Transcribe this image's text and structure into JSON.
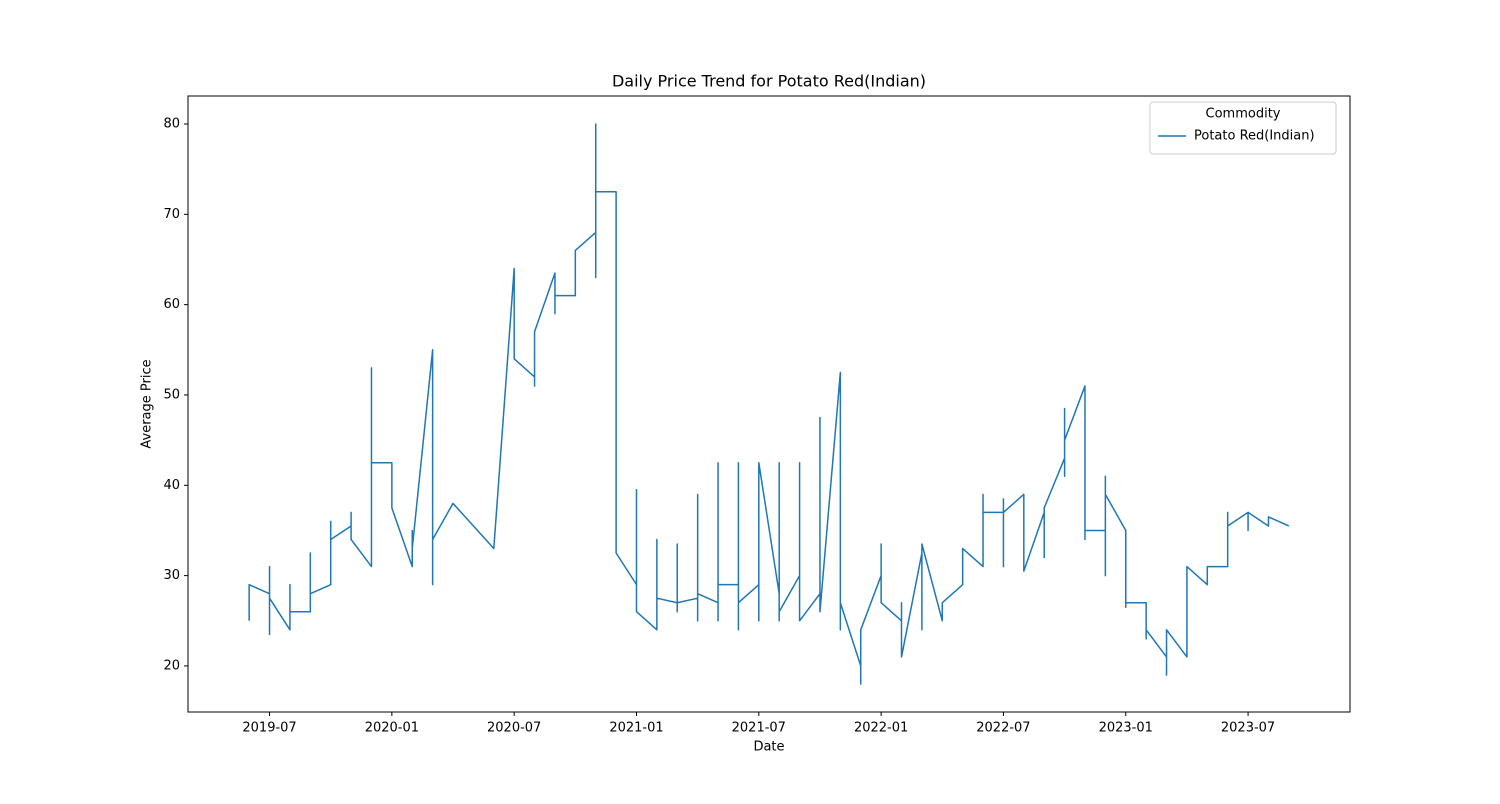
{
  "chart_data": {
    "type": "line",
    "title": "Daily Price Trend for Potato Red(Indian)",
    "x_label": "Date",
    "y_label": "Average Price",
    "legend_title": "Commodity",
    "legend_position": "upper right",
    "grid": false,
    "xlim": [
      "2019-03",
      "2023-12"
    ],
    "xticks": [
      "2019-07",
      "2020-01",
      "2020-07",
      "2021-01",
      "2021-07",
      "2022-01",
      "2022-07",
      "2023-01",
      "2023-07"
    ],
    "ylim": [
      14.9,
      83.1
    ],
    "yticks": [
      20,
      30,
      40,
      50,
      60,
      70,
      80
    ],
    "x": [
      "2019-06",
      "2019-06",
      "2019-06",
      "2019-06",
      "2019-07",
      "2019-07",
      "2019-07",
      "2019-07",
      "2019-07",
      "2019-07",
      "2019-08",
      "2019-08",
      "2019-08",
      "2019-08",
      "2019-08",
      "2019-08",
      "2019-08",
      "2019-09",
      "2019-09",
      "2019-09",
      "2019-09",
      "2019-10",
      "2019-10",
      "2019-10",
      "2019-10",
      "2019-10",
      "2019-11",
      "2019-11",
      "2019-11",
      "2019-11",
      "2019-11",
      "2019-12",
      "2019-12",
      "2019-12",
      "2019-12",
      "2019-12",
      "2019-12",
      "2019-12",
      "2020-01",
      "2020-01",
      "2020-01",
      "2020-01",
      "2020-01",
      "2020-01",
      "2020-02",
      "2020-02",
      "2020-02",
      "2020-02",
      "2020-02",
      "2020-03",
      "2020-03",
      "2020-03",
      "2020-03",
      "2020-03",
      "2020-04",
      "2020-06",
      "2020-07",
      "2020-07",
      "2020-08",
      "2020-08",
      "2020-08",
      "2020-08",
      "2020-08",
      "2020-09",
      "2020-09",
      "2020-09",
      "2020-09",
      "2020-10",
      "2020-10",
      "2020-10",
      "2020-10",
      "2020-11",
      "2020-11",
      "2020-11",
      "2020-11",
      "2020-11",
      "2020-11",
      "2020-11",
      "2020-12",
      "2020-12",
      "2020-12",
      "2020-12",
      "2020-12",
      "2020-12",
      "2020-12",
      "2021-01",
      "2021-01",
      "2021-01",
      "2021-01",
      "2021-01",
      "2021-02",
      "2021-02",
      "2021-02",
      "2021-02",
      "2021-02",
      "2021-02",
      "2021-03",
      "2021-03",
      "2021-03",
      "2021-03",
      "2021-03",
      "2021-04",
      "2021-04",
      "2021-04",
      "2021-04",
      "2021-04",
      "2021-05",
      "2021-05",
      "2021-05",
      "2021-05",
      "2021-05",
      "2021-05",
      "2021-05",
      "2021-06",
      "2021-06",
      "2021-06",
      "2021-06",
      "2021-06",
      "2021-06",
      "2021-06",
      "2021-07",
      "2021-07",
      "2021-07",
      "2021-07",
      "2021-07",
      "2021-07",
      "2021-08",
      "2021-08",
      "2021-08",
      "2021-08",
      "2021-08",
      "2021-08",
      "2021-08",
      "2021-09",
      "2021-09",
      "2021-09",
      "2021-09",
      "2021-09",
      "2021-09",
      "2021-10",
      "2021-10",
      "2021-10",
      "2021-10",
      "2021-10",
      "2021-11",
      "2021-11",
      "2021-11",
      "2021-11",
      "2021-11",
      "2021-11",
      "2021-11",
      "2021-12",
      "2021-12",
      "2021-12",
      "2021-12",
      "2022-01",
      "2022-01",
      "2022-01",
      "2022-01",
      "2022-02",
      "2022-02",
      "2022-02",
      "2022-02",
      "2022-02",
      "2022-03",
      "2022-03",
      "2022-03",
      "2022-03",
      "2022-03",
      "2022-04",
      "2022-04",
      "2022-04",
      "2022-04",
      "2022-05",
      "2022-05",
      "2022-05",
      "2022-05",
      "2022-06",
      "2022-06",
      "2022-06",
      "2022-06",
      "2022-06",
      "2022-07",
      "2022-07",
      "2022-07",
      "2022-07",
      "2022-07",
      "2022-08",
      "2022-08",
      "2022-08",
      "2022-08",
      "2022-08",
      "2022-08",
      "2022-09",
      "2022-09",
      "2022-09",
      "2022-09",
      "2022-10",
      "2022-10",
      "2022-10",
      "2022-10",
      "2022-10",
      "2022-11",
      "2022-11",
      "2022-11",
      "2022-11",
      "2022-11",
      "2022-11",
      "2022-12",
      "2022-12",
      "2022-12",
      "2022-12",
      "2022-12",
      "2023-01",
      "2023-01",
      "2023-01",
      "2023-01",
      "2023-01",
      "2023-02",
      "2023-02",
      "2023-02",
      "2023-02",
      "2023-02",
      "2023-03",
      "2023-03",
      "2023-03",
      "2023-03",
      "2023-03",
      "2023-04",
      "2023-04",
      "2023-04",
      "2023-04",
      "2023-04",
      "2023-05",
      "2023-05",
      "2023-05",
      "2023-05",
      "2023-06",
      "2023-06",
      "2023-06",
      "2023-06",
      "2023-07",
      "2023-07",
      "2023-07",
      "2023-08",
      "2023-08",
      "2023-08",
      "2023-08",
      "2023-09",
      "2023-09"
    ],
    "series": [
      {
        "name": "Potato Red(Indian)",
        "color": "#1f77b4",
        "values": [
          25,
          27,
          27.5,
          29,
          28,
          26,
          23.5,
          24,
          31,
          27.5,
          24,
          28,
          26,
          29,
          26,
          28,
          26,
          26,
          26,
          32.5,
          28,
          29,
          34,
          34,
          36,
          34,
          35.5,
          34,
          37,
          34,
          34,
          31,
          36.5,
          44,
          39,
          53,
          51,
          42.5,
          42.5,
          39,
          41,
          39,
          41,
          37.5,
          31,
          32,
          35,
          31,
          33,
          55,
          31,
          29,
          31,
          34,
          38,
          33,
          64,
          54,
          52,
          51,
          56,
          53,
          57,
          63.5,
          59,
          59,
          61,
          61,
          65,
          61,
          66,
          68,
          63,
          67,
          72.5,
          78,
          80,
          72.5,
          72.5,
          62,
          60,
          42,
          50,
          37.5,
          32.5,
          29,
          39.5,
          30,
          35,
          26,
          24,
          32.5,
          24,
          34,
          25,
          27.5,
          27,
          28.5,
          26,
          33.5,
          27,
          27.5,
          25,
          32.5,
          39,
          28,
          27,
          42.5,
          25,
          35,
          27,
          42.5,
          29,
          29,
          24,
          30,
          32.5,
          29,
          42.5,
          27,
          29,
          29,
          32.5,
          25,
          29,
          42.5,
          28,
          30,
          32.5,
          25,
          29,
          42.5,
          26,
          30,
          25,
          42.5,
          27,
          32,
          25,
          28,
          42.5,
          47.5,
          30,
          26,
          52.5,
          40,
          25,
          35,
          24,
          42.5,
          27,
          20,
          22,
          18,
          24,
          30,
          33.5,
          33.5,
          27,
          25,
          23.5,
          27,
          23.5,
          21,
          32.5,
          24,
          26,
          25,
          33.5,
          25,
          26,
          25,
          27,
          29,
          31,
          29,
          33,
          31,
          35,
          39,
          34.5,
          37,
          37,
          31,
          38.5,
          37,
          37,
          39,
          31,
          39,
          37,
          37,
          30.5,
          37,
          37,
          32,
          37.5,
          43,
          41,
          48.5,
          43,
          45,
          51,
          38,
          46.5,
          35,
          34,
          35,
          35,
          30,
          37,
          41,
          39,
          35,
          30,
          27,
          26.5,
          27,
          27,
          24,
          25,
          23,
          24,
          21,
          22,
          19,
          21,
          24,
          21,
          26,
          21,
          29,
          31,
          29,
          31,
          29.5,
          31,
          31,
          37,
          35,
          35.5,
          37,
          35,
          37,
          35.5,
          36.5,
          35.5,
          36.5,
          35.5,
          35.5
        ]
      }
    ]
  }
}
